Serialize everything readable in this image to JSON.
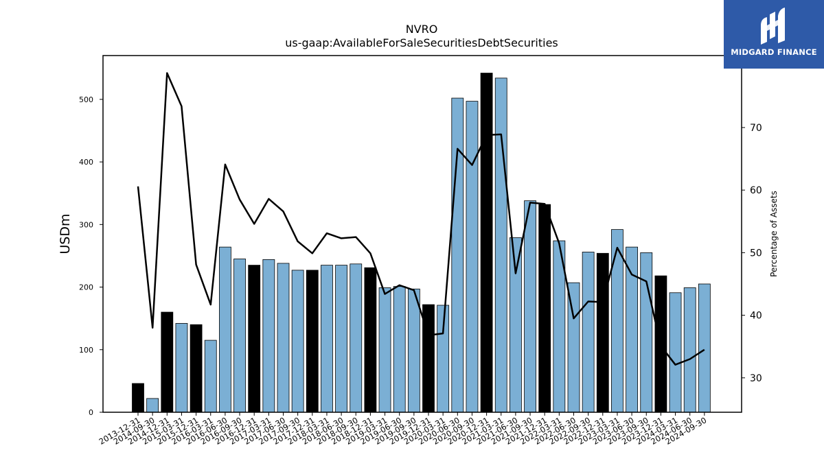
{
  "chart_data": {
    "type": "bar",
    "title": "NVRO",
    "subtitle": "us-gaap:AvailableForSaleSecuritiesDebtSecurities",
    "ylabel": "USDm",
    "y2label": "Percentage of Assets",
    "ylim": [
      0,
      570
    ],
    "y2lim": [
      24.5,
      81.5
    ],
    "yticks": [
      0,
      100,
      200,
      300,
      400,
      500
    ],
    "y2ticks": [
      30,
      40,
      50,
      60,
      70
    ],
    "categories": [
      "2013-12-31",
      "2014-09-30",
      "2014-12-31",
      "2015-03-31",
      "2015-12-31",
      "2016-03-31",
      "2016-06-30",
      "2016-09-30",
      "2016-12-31",
      "2017-03-31",
      "2017-06-30",
      "2017-09-30",
      "2017-12-31",
      "2018-03-31",
      "2018-06-30",
      "2018-09-30",
      "2018-12-31",
      "2019-03-31",
      "2019-06-30",
      "2019-09-30",
      "2019-12-31",
      "2020-03-31",
      "2020-06-30",
      "2020-09-30",
      "2020-12-31",
      "2021-03-31",
      "2021-06-30",
      "2021-09-30",
      "2021-12-31",
      "2022-03-31",
      "2022-06-30",
      "2022-09-30",
      "2022-12-31",
      "2023-03-31",
      "2023-06-30",
      "2023-09-30",
      "2023-12-31",
      "2024-03-31",
      "2024-06-30",
      "2024-09-30"
    ],
    "series": [
      {
        "type": "bar",
        "values": [
          46,
          22,
          160,
          142,
          140,
          115,
          264,
          245,
          235,
          244,
          238,
          227,
          227,
          235,
          235,
          237,
          231,
          199,
          201,
          197,
          172,
          171,
          502,
          497,
          542,
          534,
          279,
          338,
          332,
          274,
          207,
          256,
          254,
          292,
          264,
          255,
          218,
          191,
          199,
          205
        ],
        "highlight": [
          true,
          false,
          true,
          false,
          true,
          false,
          false,
          false,
          true,
          false,
          false,
          false,
          true,
          false,
          false,
          false,
          true,
          false,
          false,
          false,
          true,
          false,
          false,
          false,
          true,
          false,
          false,
          false,
          true,
          false,
          false,
          false,
          true,
          false,
          false,
          false,
          true,
          false,
          false,
          false
        ]
      },
      {
        "type": "line",
        "axis": "right",
        "values": [
          60.6,
          38.0,
          78.7,
          73.4,
          48.1,
          41.7,
          64.1,
          58.5,
          54.6,
          58.6,
          56.6,
          51.8,
          49.9,
          53.1,
          52.3,
          52.5,
          49.9,
          43.4,
          44.8,
          44.0,
          36.8,
          37.1,
          66.6,
          64.0,
          68.8,
          68.9,
          46.7,
          58.0,
          57.8,
          51.5,
          39.5,
          42.2,
          42.1,
          50.8,
          46.5,
          45.4,
          35.1,
          32.1,
          33.0,
          34.5
        ]
      }
    ],
    "colors": {
      "bar": "#7bafd4",
      "bar_highlight": "#000000",
      "line": "#000000"
    },
    "grid": false
  },
  "logo": {
    "text": "MIDGARD FINANCE",
    "background": "#2e5aa8"
  }
}
